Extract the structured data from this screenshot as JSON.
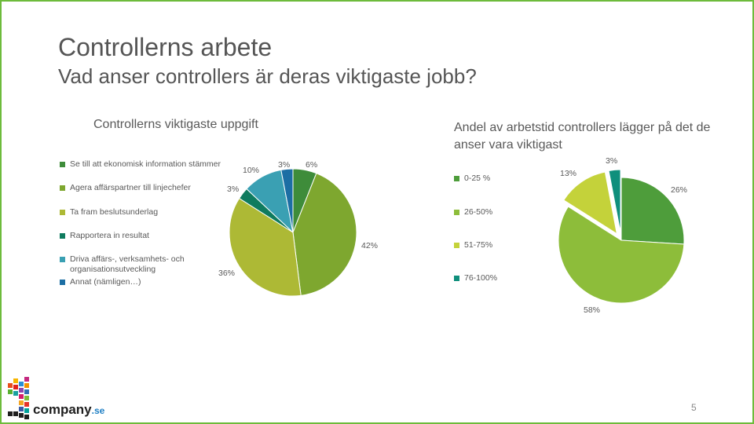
{
  "slide": {
    "title": "Controllerns arbete",
    "subtitle": "Vad anser controllers är deras viktigaste jobb?",
    "page_number": "5"
  },
  "logo": {
    "main": "company",
    "suffix": ".se"
  },
  "chart_data": [
    {
      "type": "pie",
      "title": "Controllerns viktigaste uppgift",
      "categories": [
        "Se till att ekonomisk information stämmer",
        "Agera affärspartner till linjechefer",
        "Ta fram beslutsunderlag",
        "Rapportera in resultat",
        "Driva affärs-, verksamhets- och organisationsutveckling",
        "Annat (nämligen…)"
      ],
      "values": [
        6,
        42,
        36,
        3,
        10,
        3
      ],
      "data_labels": [
        "6%",
        "42%",
        "36%",
        "3%",
        "10%",
        "3%"
      ],
      "colors": [
        "#3e8c3a",
        "#7ea72f",
        "#adb935",
        "#0f7b5e",
        "#3aa0b3",
        "#1c6ea4"
      ],
      "legend_position": "left"
    },
    {
      "type": "pie",
      "title": "Andel av arbetstid controllers lägger på det de anser vara viktigast",
      "categories": [
        "0-25 %",
        "26-50%",
        "51-75%",
        "76-100%"
      ],
      "values": [
        26,
        58,
        13,
        3
      ],
      "data_labels": [
        "26%",
        "58%",
        "13%",
        "3%"
      ],
      "colors": [
        "#4e9d3b",
        "#8dbd3a",
        "#c4d23a",
        "#0f8f7c"
      ],
      "exploded": [
        false,
        false,
        true,
        true
      ],
      "legend_position": "left"
    }
  ]
}
